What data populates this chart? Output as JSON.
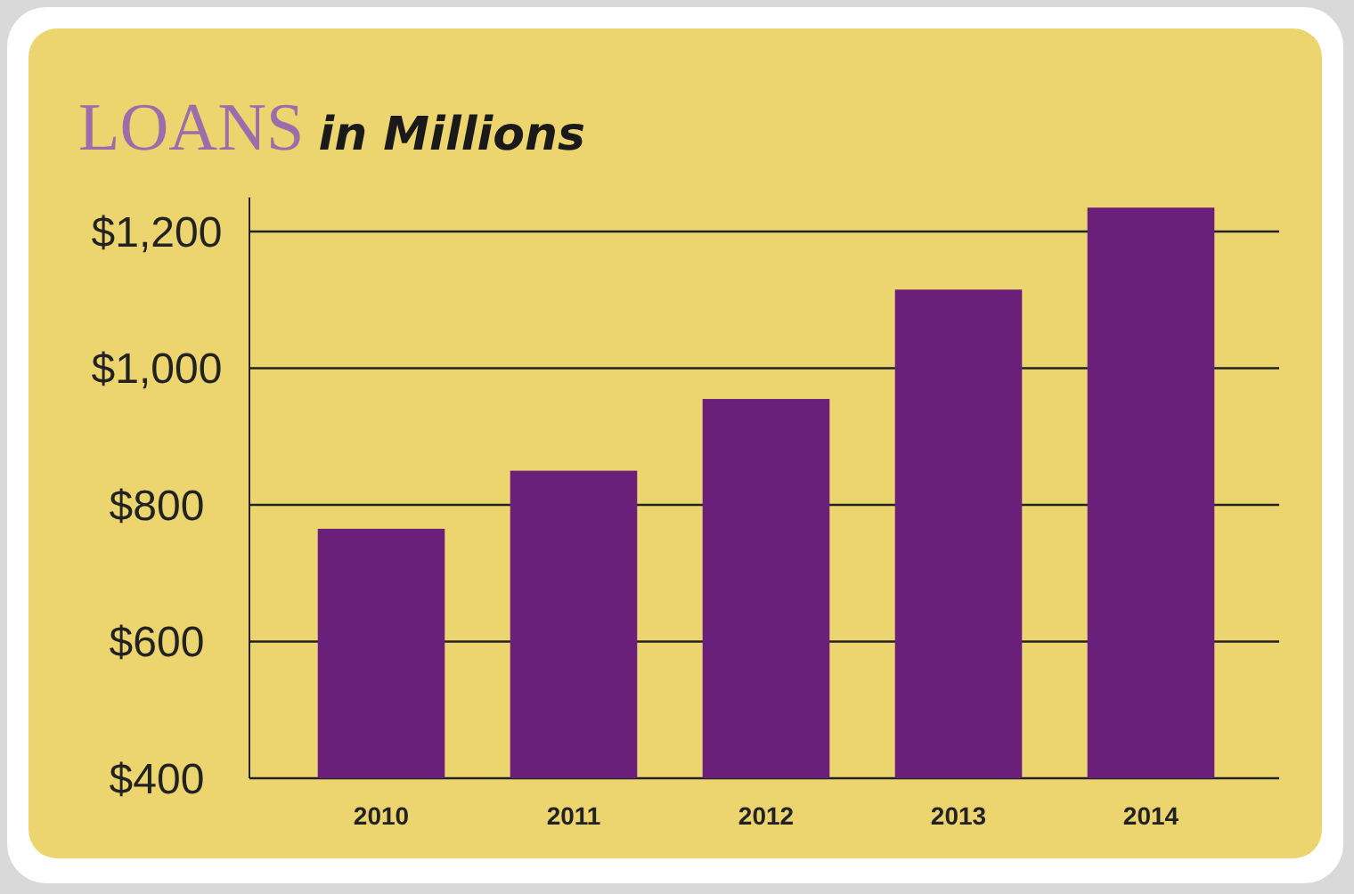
{
  "chart_data": {
    "type": "bar",
    "title": "LOANS",
    "subtitle": "in Millions",
    "categories": [
      "2010",
      "2011",
      "2012",
      "2013",
      "2014"
    ],
    "values": [
      765,
      850,
      955,
      1115,
      1235
    ],
    "color": "#6a1f7b",
    "ylim": [
      400,
      1250
    ],
    "yticks": [
      {
        "value": 400,
        "label": "$400"
      },
      {
        "value": 600,
        "label": "$600"
      },
      {
        "value": 800,
        "label": "$800"
      },
      {
        "value": 1000,
        "label": "$1,000"
      },
      {
        "value": 1200,
        "label": "$1,200"
      }
    ],
    "grid": "y"
  }
}
